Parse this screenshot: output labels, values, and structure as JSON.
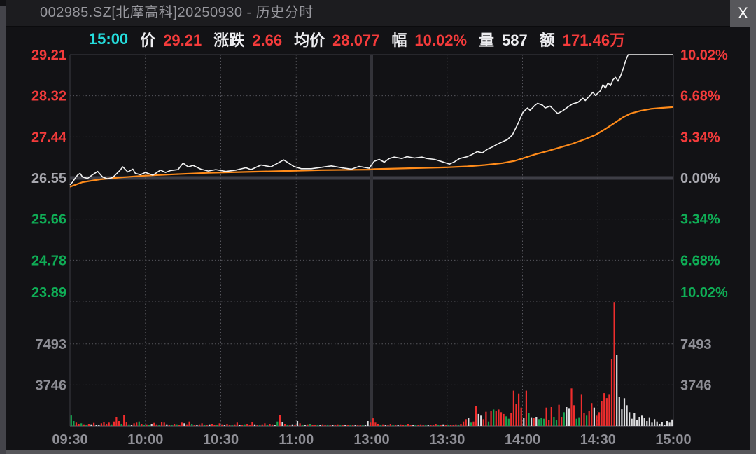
{
  "window": {
    "title": "002985.SZ[北摩高科]20250930 - 历史分时",
    "close_label": "X"
  },
  "info_bar": {
    "time": "15:00",
    "fields": [
      {
        "label": "价",
        "value": "29.21",
        "tone": "up"
      },
      {
        "label": "涨跌",
        "value": "2.66",
        "tone": "up"
      },
      {
        "label": "均价",
        "value": "28.077",
        "tone": "up"
      },
      {
        "label": "幅",
        "value": "10.02%",
        "tone": "up"
      },
      {
        "label": "量",
        "value": "587",
        "tone": "text"
      },
      {
        "label": "额",
        "value": "171.46万",
        "tone": "up"
      }
    ]
  },
  "colors": {
    "up": "#f43b3b",
    "down": "#0fae56",
    "flat": "#a8a8af",
    "text": "#ededf0",
    "cyan": "#25dcdc",
    "axis_text": "#8f8f96",
    "price_line": "#f2f2f2",
    "avg_line": "#ff8b1a",
    "vol_up": "#ef2d2d",
    "vol_down": "#16a44f",
    "vol_flat": "#dcdcde",
    "grid_dot": "#56565d",
    "grid_solid": "#3c3c43",
    "baseline": "#3e3e46",
    "mid_line": "#333339"
  },
  "chart_data": {
    "type": "line+bar",
    "title": "历史分时 (intraday price/avg lines with volume bars)",
    "minutes_total": 240,
    "session_break_minute": 120,
    "prev_close": 26.55,
    "price_axis": {
      "max": 29.21,
      "min": 23.89
    },
    "left_ticks": [
      {
        "label": "29.21",
        "tone": "up"
      },
      {
        "label": "28.32",
        "tone": "up"
      },
      {
        "label": "27.44",
        "tone": "up"
      },
      {
        "label": "26.55",
        "tone": "flat"
      },
      {
        "label": "25.66",
        "tone": "down"
      },
      {
        "label": "24.78",
        "tone": "down"
      },
      {
        "label": "23.89",
        "tone": "down"
      }
    ],
    "right_ticks": [
      {
        "label": "10.02%",
        "tone": "up"
      },
      {
        "label": "6.68%",
        "tone": "up"
      },
      {
        "label": "3.34%",
        "tone": "up"
      },
      {
        "label": "0.00%",
        "tone": "flat"
      },
      {
        "label": "3.34%",
        "tone": "down"
      },
      {
        "label": "6.68%",
        "tone": "down"
      },
      {
        "label": "10.02%",
        "tone": "down"
      }
    ],
    "volume_axis": {
      "max": 11379,
      "ticks": [
        7493,
        3746
      ]
    },
    "x_ticks": [
      {
        "label": "09:30",
        "minute": 0
      },
      {
        "label": "10:00",
        "minute": 30
      },
      {
        "label": "10:30",
        "minute": 60
      },
      {
        "label": "11:00",
        "minute": 90
      },
      {
        "label": "13:00",
        "minute": 120
      },
      {
        "label": "13:30",
        "minute": 150
      },
      {
        "label": "14:00",
        "minute": 180
      },
      {
        "label": "14:30",
        "minute": 210
      },
      {
        "label": "15:00",
        "minute": 240
      }
    ],
    "price_line": [
      [
        0,
        26.4
      ],
      [
        1,
        26.46
      ],
      [
        2,
        26.54
      ],
      [
        3,
        26.61
      ],
      [
        4,
        26.65
      ],
      [
        5,
        26.57
      ],
      [
        7,
        26.54
      ],
      [
        9,
        26.62
      ],
      [
        11,
        26.69
      ],
      [
        13,
        26.57
      ],
      [
        15,
        26.53
      ],
      [
        17,
        26.56
      ],
      [
        20,
        26.72
      ],
      [
        21,
        26.79
      ],
      [
        23,
        26.68
      ],
      [
        25,
        26.74
      ],
      [
        26,
        26.65
      ],
      [
        28,
        26.62
      ],
      [
        30,
        26.67
      ],
      [
        33,
        26.61
      ],
      [
        36,
        26.72
      ],
      [
        38,
        26.67
      ],
      [
        40,
        26.71
      ],
      [
        43,
        26.73
      ],
      [
        45,
        26.87
      ],
      [
        47,
        26.79
      ],
      [
        49,
        26.82
      ],
      [
        52,
        26.74
      ],
      [
        55,
        26.7
      ],
      [
        58,
        26.73
      ],
      [
        62,
        26.69
      ],
      [
        66,
        26.72
      ],
      [
        70,
        26.77
      ],
      [
        72,
        26.73
      ],
      [
        76,
        26.83
      ],
      [
        80,
        26.79
      ],
      [
        83,
        26.88
      ],
      [
        85,
        26.94
      ],
      [
        87,
        26.87
      ],
      [
        89,
        26.8
      ],
      [
        92,
        26.75
      ],
      [
        96,
        26.75
      ],
      [
        100,
        26.78
      ],
      [
        104,
        26.81
      ],
      [
        108,
        26.77
      ],
      [
        112,
        26.74
      ],
      [
        115,
        26.8
      ],
      [
        118,
        26.77
      ],
      [
        119,
        26.76
      ],
      [
        121,
        26.91
      ],
      [
        123,
        26.95
      ],
      [
        125,
        26.89
      ],
      [
        127,
        26.97
      ],
      [
        129,
        27.0
      ],
      [
        132,
        26.97
      ],
      [
        134,
        27.01
      ],
      [
        137,
        26.98
      ],
      [
        140,
        27.0
      ],
      [
        142,
        26.97
      ],
      [
        145,
        26.95
      ],
      [
        148,
        26.9
      ],
      [
        151,
        26.85
      ],
      [
        153,
        26.9
      ],
      [
        155,
        26.97
      ],
      [
        158,
        27.01
      ],
      [
        160,
        27.06
      ],
      [
        162,
        27.12
      ],
      [
        164,
        27.09
      ],
      [
        166,
        27.17
      ],
      [
        168,
        27.22
      ],
      [
        170,
        27.28
      ],
      [
        172,
        27.33
      ],
      [
        174,
        27.38
      ],
      [
        176,
        27.48
      ],
      [
        178,
        27.7
      ],
      [
        180,
        27.95
      ],
      [
        181,
        28.01
      ],
      [
        182,
        28.06
      ],
      [
        183,
        28.01
      ],
      [
        185,
        28.12
      ],
      [
        186,
        28.16
      ],
      [
        188,
        28.12
      ],
      [
        189,
        28.06
      ],
      [
        191,
        28.1
      ],
      [
        193,
        27.99
      ],
      [
        194,
        27.94
      ],
      [
        196,
        28.0
      ],
      [
        198,
        28.08
      ],
      [
        200,
        28.15
      ],
      [
        202,
        28.18
      ],
      [
        204,
        28.27
      ],
      [
        205,
        28.22
      ],
      [
        207,
        28.34
      ],
      [
        208,
        28.4
      ],
      [
        209,
        28.33
      ],
      [
        211,
        28.43
      ],
      [
        212,
        28.56
      ],
      [
        213,
        28.49
      ],
      [
        214,
        28.6
      ],
      [
        215,
        28.54
      ],
      [
        216,
        28.67
      ],
      [
        217,
        28.72
      ],
      [
        218,
        28.64
      ],
      [
        219,
        28.75
      ],
      [
        220,
        28.9
      ],
      [
        221,
        29.08
      ],
      [
        222,
        29.21
      ],
      [
        240,
        29.21
      ]
    ],
    "avg_line": [
      [
        0,
        26.36
      ],
      [
        5,
        26.46
      ],
      [
        12,
        26.52
      ],
      [
        20,
        26.56
      ],
      [
        30,
        26.6
      ],
      [
        42,
        26.63
      ],
      [
        55,
        26.66
      ],
      [
        70,
        26.68
      ],
      [
        85,
        26.7
      ],
      [
        100,
        26.72
      ],
      [
        119,
        26.73
      ],
      [
        121,
        26.74
      ],
      [
        135,
        26.76
      ],
      [
        150,
        26.78
      ],
      [
        158,
        26.8
      ],
      [
        165,
        26.83
      ],
      [
        172,
        26.87
      ],
      [
        177,
        26.92
      ],
      [
        181,
        26.99
      ],
      [
        185,
        27.06
      ],
      [
        190,
        27.13
      ],
      [
        195,
        27.21
      ],
      [
        200,
        27.29
      ],
      [
        205,
        27.39
      ],
      [
        209,
        27.48
      ],
      [
        213,
        27.61
      ],
      [
        217,
        27.75
      ],
      [
        220,
        27.86
      ],
      [
        223,
        27.94
      ],
      [
        227,
        28.0
      ],
      [
        231,
        28.04
      ],
      [
        235,
        28.06
      ],
      [
        240,
        28.08
      ]
    ],
    "volume": [
      [
        950,
        "g"
      ],
      [
        450,
        "g"
      ],
      [
        300,
        "r"
      ],
      [
        190,
        "r"
      ],
      [
        235,
        "g"
      ],
      [
        150,
        "r"
      ],
      [
        110,
        "g"
      ],
      [
        190,
        "r"
      ],
      [
        150,
        "w"
      ],
      [
        275,
        "r"
      ],
      [
        110,
        "w"
      ],
      [
        64,
        "w"
      ],
      [
        235,
        "r"
      ],
      [
        360,
        "r"
      ],
      [
        190,
        "r"
      ],
      [
        300,
        "r"
      ],
      [
        150,
        "g"
      ],
      [
        405,
        "r"
      ],
      [
        830,
        "r"
      ],
      [
        450,
        "r"
      ],
      [
        190,
        "g"
      ],
      [
        1000,
        "r"
      ],
      [
        360,
        "r"
      ],
      [
        150,
        "g"
      ],
      [
        110,
        "w"
      ],
      [
        235,
        "r"
      ],
      [
        300,
        "r"
      ],
      [
        405,
        "g"
      ],
      [
        190,
        "r"
      ],
      [
        110,
        "g"
      ],
      [
        150,
        "r"
      ],
      [
        85,
        "g"
      ],
      [
        190,
        "w"
      ],
      [
        275,
        "r"
      ],
      [
        150,
        "r"
      ],
      [
        110,
        "g"
      ],
      [
        360,
        "r"
      ],
      [
        300,
        "r"
      ],
      [
        150,
        "w"
      ],
      [
        110,
        "r"
      ],
      [
        85,
        "g"
      ],
      [
        190,
        "r"
      ],
      [
        150,
        "g"
      ],
      [
        110,
        "r"
      ],
      [
        300,
        "r"
      ],
      [
        235,
        "w"
      ],
      [
        150,
        "r"
      ],
      [
        405,
        "r"
      ],
      [
        190,
        "g"
      ],
      [
        110,
        "r"
      ],
      [
        85,
        "w"
      ],
      [
        150,
        "r"
      ],
      [
        235,
        "r"
      ],
      [
        110,
        "g"
      ],
      [
        64,
        "r"
      ],
      [
        150,
        "w"
      ],
      [
        190,
        "r"
      ],
      [
        110,
        "r"
      ],
      [
        85,
        "g"
      ],
      [
        235,
        "r"
      ],
      [
        150,
        "r"
      ],
      [
        110,
        "w"
      ],
      [
        190,
        "r"
      ],
      [
        85,
        "r"
      ],
      [
        110,
        "g"
      ],
      [
        150,
        "r"
      ],
      [
        300,
        "r"
      ],
      [
        110,
        "w"
      ],
      [
        85,
        "r"
      ],
      [
        150,
        "g"
      ],
      [
        190,
        "r"
      ],
      [
        110,
        "r"
      ],
      [
        360,
        "r"
      ],
      [
        150,
        "w"
      ],
      [
        110,
        "r"
      ],
      [
        85,
        "g"
      ],
      [
        150,
        "r"
      ],
      [
        235,
        "r"
      ],
      [
        110,
        "g"
      ],
      [
        190,
        "r"
      ],
      [
        150,
        "r"
      ],
      [
        110,
        "w"
      ],
      [
        405,
        "g"
      ],
      [
        1000,
        "r"
      ],
      [
        360,
        "w"
      ],
      [
        190,
        "r"
      ],
      [
        110,
        "g"
      ],
      [
        85,
        "r"
      ],
      [
        150,
        "w"
      ],
      [
        110,
        "r"
      ],
      [
        450,
        "w"
      ],
      [
        235,
        "r"
      ],
      [
        110,
        "g"
      ],
      [
        85,
        "w"
      ],
      [
        150,
        "r"
      ],
      [
        190,
        "g"
      ],
      [
        110,
        "r"
      ],
      [
        85,
        "r"
      ],
      [
        64,
        "g"
      ],
      [
        110,
        "w"
      ],
      [
        150,
        "r"
      ],
      [
        85,
        "r"
      ],
      [
        110,
        "g"
      ],
      [
        64,
        "r"
      ],
      [
        85,
        "w"
      ],
      [
        110,
        "r"
      ],
      [
        150,
        "r"
      ],
      [
        85,
        "g"
      ],
      [
        64,
        "r"
      ],
      [
        110,
        "w"
      ],
      [
        85,
        "r"
      ],
      [
        64,
        "g"
      ],
      [
        110,
        "r"
      ],
      [
        85,
        "w"
      ],
      [
        64,
        "r"
      ],
      [
        85,
        "r"
      ],
      [
        110,
        "g"
      ],
      [
        64,
        "w"
      ],
      [
        450,
        "w"
      ],
      [
        300,
        "r"
      ],
      [
        700,
        "r"
      ],
      [
        300,
        "r"
      ],
      [
        190,
        "r"
      ],
      [
        110,
        "g"
      ],
      [
        150,
        "r"
      ],
      [
        85,
        "w"
      ],
      [
        110,
        "r"
      ],
      [
        190,
        "r"
      ],
      [
        85,
        "g"
      ],
      [
        64,
        "r"
      ],
      [
        110,
        "w"
      ],
      [
        150,
        "r"
      ],
      [
        110,
        "r"
      ],
      [
        85,
        "g"
      ],
      [
        190,
        "r"
      ],
      [
        110,
        "r"
      ],
      [
        85,
        "w"
      ],
      [
        64,
        "g"
      ],
      [
        110,
        "r"
      ],
      [
        150,
        "r"
      ],
      [
        85,
        "r"
      ],
      [
        110,
        "g"
      ],
      [
        64,
        "w"
      ],
      [
        85,
        "r"
      ],
      [
        110,
        "r"
      ],
      [
        190,
        "r"
      ],
      [
        85,
        "g"
      ],
      [
        110,
        "r"
      ],
      [
        150,
        "w"
      ],
      [
        85,
        "r"
      ],
      [
        64,
        "g"
      ],
      [
        110,
        "r"
      ],
      [
        85,
        "r"
      ],
      [
        150,
        "r"
      ],
      [
        110,
        "g"
      ],
      [
        190,
        "r"
      ],
      [
        405,
        "r"
      ],
      [
        620,
        "r"
      ],
      [
        725,
        "w"
      ],
      [
        300,
        "g"
      ],
      [
        405,
        "r"
      ],
      [
        1790,
        "r"
      ],
      [
        1090,
        "w"
      ],
      [
        940,
        "w"
      ],
      [
        620,
        "r"
      ],
      [
        1300,
        "r"
      ],
      [
        405,
        "g"
      ],
      [
        1405,
        "r"
      ],
      [
        1510,
        "g"
      ],
      [
        1365,
        "r"
      ],
      [
        1510,
        "r"
      ],
      [
        1258,
        "r"
      ],
      [
        1090,
        "r"
      ],
      [
        875,
        "g"
      ],
      [
        660,
        "g"
      ],
      [
        1150,
        "r"
      ],
      [
        3220,
        "r"
      ],
      [
        2000,
        "r"
      ],
      [
        2960,
        "r"
      ],
      [
        1680,
        "r"
      ],
      [
        725,
        "w"
      ],
      [
        3220,
        "r"
      ],
      [
        1215,
        "g"
      ],
      [
        790,
        "w"
      ],
      [
        725,
        "r"
      ],
      [
        830,
        "w"
      ],
      [
        620,
        "g"
      ],
      [
        725,
        "g"
      ],
      [
        660,
        "g"
      ],
      [
        1680,
        "r"
      ],
      [
        510,
        "r"
      ],
      [
        1725,
        "r"
      ],
      [
        830,
        "g"
      ],
      [
        510,
        "g"
      ],
      [
        1940,
        "r"
      ],
      [
        830,
        "r"
      ],
      [
        1258,
        "g"
      ],
      [
        1725,
        "w"
      ],
      [
        1575,
        "w"
      ],
      [
        3430,
        "r"
      ],
      [
        1900,
        "r"
      ],
      [
        660,
        "g"
      ],
      [
        790,
        "g"
      ],
      [
        2850,
        "r"
      ],
      [
        1150,
        "r"
      ],
      [
        940,
        "g"
      ],
      [
        1365,
        "r"
      ],
      [
        2100,
        "r"
      ],
      [
        1680,
        "w"
      ],
      [
        940,
        "r"
      ],
      [
        1258,
        "r"
      ],
      [
        2300,
        "r"
      ],
      [
        3000,
        "r"
      ],
      [
        2550,
        "r"
      ],
      [
        2850,
        "r"
      ],
      [
        6100,
        "r"
      ],
      [
        11300,
        "r"
      ],
      [
        6500,
        "w"
      ],
      [
        2640,
        "w"
      ],
      [
        1530,
        "w"
      ],
      [
        2540,
        "w"
      ],
      [
        1900,
        "w"
      ],
      [
        1258,
        "w"
      ],
      [
        660,
        "w"
      ],
      [
        1150,
        "w"
      ],
      [
        510,
        "w"
      ],
      [
        830,
        "w"
      ],
      [
        940,
        "w"
      ],
      [
        725,
        "w"
      ],
      [
        450,
        "w"
      ],
      [
        790,
        "w"
      ],
      [
        300,
        "w"
      ],
      [
        620,
        "w"
      ],
      [
        405,
        "w"
      ],
      [
        190,
        "w"
      ],
      [
        360,
        "w"
      ],
      [
        85,
        "w"
      ],
      [
        450,
        "w"
      ],
      [
        300,
        "w"
      ],
      [
        587,
        "w"
      ]
    ]
  }
}
